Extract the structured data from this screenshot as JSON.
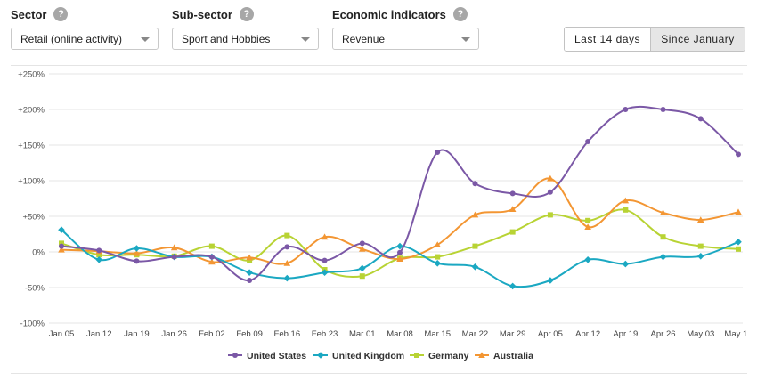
{
  "filters": {
    "sector": {
      "label": "Sector",
      "value": "Retail (online activity)"
    },
    "subsector": {
      "label": "Sub-sector",
      "value": "Sport and Hobbies"
    },
    "indicator": {
      "label": "Economic indicators",
      "value": "Revenue"
    },
    "help_glyph": "?"
  },
  "range_buttons": {
    "last14": "Last 14 days",
    "since_jan": "Since January",
    "active": "since_jan"
  },
  "colors": {
    "United States": "#7b58a6",
    "United Kingdom": "#1ba8c2",
    "Germany": "#b8d334",
    "Australia": "#f39633"
  },
  "chart_data": {
    "type": "line",
    "title": "",
    "xlabel": "",
    "ylabel": "",
    "ylim": [
      -100,
      250
    ],
    "yticks": [
      -100,
      -50,
      0,
      50,
      100,
      150,
      200,
      250
    ],
    "ytick_labels": [
      "-100%",
      "-50%",
      "0%",
      "+50%",
      "+100%",
      "+150%",
      "+200%",
      "+250%"
    ],
    "categories": [
      "Jan 05",
      "Jan 12",
      "Jan 19",
      "Jan 26",
      "Feb 02",
      "Feb 09",
      "Feb 16",
      "Feb 23",
      "Mar 01",
      "Mar 08",
      "Mar 15",
      "Mar 22",
      "Mar 29",
      "Apr 05",
      "Apr 12",
      "Apr 19",
      "Apr 26",
      "May 03",
      "May 10"
    ],
    "grid": true,
    "legend": "bottom",
    "series": [
      {
        "name": "United States",
        "marker": "circle",
        "values": [
          8,
          2,
          -13,
          -7,
          -7,
          -40,
          7,
          -12,
          12,
          -1,
          140,
          96,
          82,
          84,
          155,
          200,
          200,
          187,
          137
        ]
      },
      {
        "name": "United Kingdom",
        "marker": "diamond",
        "values": [
          31,
          -11,
          5,
          -7,
          -7,
          -29,
          -37,
          -29,
          -23,
          8,
          -16,
          -21,
          -48,
          -40,
          -11,
          -17,
          -7,
          -6,
          14
        ]
      },
      {
        "name": "Germany",
        "marker": "square",
        "values": [
          12,
          -4,
          -4,
          -6,
          8,
          -12,
          23,
          -25,
          -34,
          -9,
          -7,
          8,
          28,
          52,
          44,
          59,
          21,
          8,
          4
        ]
      },
      {
        "name": "Australia",
        "marker": "triangle",
        "values": [
          3,
          1,
          -2,
          6,
          -14,
          -8,
          -16,
          21,
          4,
          -10,
          10,
          52,
          60,
          103,
          35,
          72,
          55,
          45,
          56
        ]
      }
    ]
  }
}
